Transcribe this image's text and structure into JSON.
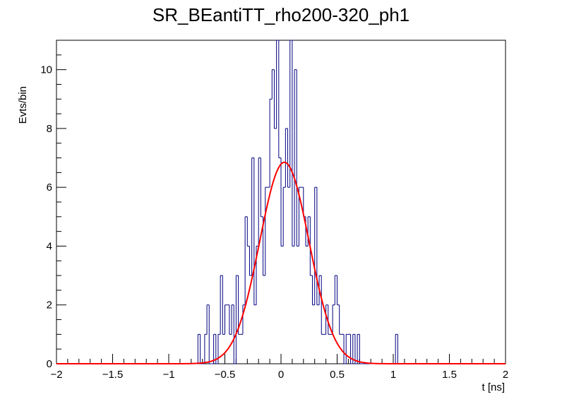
{
  "chart_data": {
    "type": "histogram",
    "title": "SR_BEantiTT_rho200-320_ph1",
    "xlabel": "t [ns]",
    "ylabel": "Evts/bin",
    "xlim": [
      -2,
      2
    ],
    "ylim": [
      0,
      11
    ],
    "x_ticks": [
      -2,
      -1.5,
      -1,
      -0.5,
      0,
      0.5,
      1,
      1.5,
      2
    ],
    "x_tick_labels": [
      "−2",
      "−1.5",
      "−1",
      "−0.5",
      "0",
      "0.5",
      "1",
      "1.5",
      "2"
    ],
    "y_ticks": [
      0,
      2,
      4,
      6,
      8,
      10
    ],
    "y_tick_labels": [
      "0",
      "2",
      "4",
      "6",
      "8",
      "10"
    ],
    "grid": false,
    "legend": "none",
    "histogram": {
      "color": "#000080",
      "bin_width": 0.02,
      "bin_lows": [
        -0.76,
        -0.74,
        -0.7,
        -0.68,
        -0.66,
        -0.64,
        -0.6,
        -0.58,
        -0.56,
        -0.54,
        -0.52,
        -0.5,
        -0.48,
        -0.46,
        -0.44,
        -0.42,
        -0.4,
        -0.38,
        -0.36,
        -0.34,
        -0.32,
        -0.3,
        -0.28,
        -0.26,
        -0.24,
        -0.22,
        -0.2,
        -0.18,
        -0.16,
        -0.14,
        -0.12,
        -0.1,
        -0.08,
        -0.06,
        -0.04,
        -0.02,
        0,
        0.02,
        0.04,
        0.06,
        0.08,
        0.1,
        0.12,
        0.14,
        0.16,
        0.18,
        0.2,
        0.22,
        0.24,
        0.26,
        0.28,
        0.3,
        0.32,
        0.34,
        0.36,
        0.38,
        0.4,
        0.42,
        0.44,
        0.46,
        0.48,
        0.5,
        0.52,
        0.54,
        0.56,
        0.58,
        0.6,
        0.62,
        0.64,
        0.66,
        0.68,
        0.7,
        1.02
      ],
      "counts": [
        0,
        1,
        0,
        1,
        2,
        0,
        1,
        0,
        1,
        3,
        1,
        2,
        2,
        1,
        2,
        0,
        3,
        1,
        1,
        2,
        5,
        4,
        3,
        7,
        2,
        4,
        7,
        5,
        3,
        6,
        6,
        9,
        10,
        8,
        11,
        7,
        4,
        6,
        8,
        6,
        11,
        4,
        10,
        4,
        6,
        6,
        5,
        4,
        5,
        3,
        2,
        6,
        2,
        3,
        1,
        1,
        2,
        1,
        1,
        2,
        3,
        2,
        1,
        1,
        0,
        1,
        1,
        0,
        1,
        0,
        1,
        0,
        1
      ]
    },
    "fit": {
      "name": "gaus",
      "color": "#ff0000",
      "constant": 6.85,
      "mean": 0.03,
      "sigma": 0.22
    }
  }
}
